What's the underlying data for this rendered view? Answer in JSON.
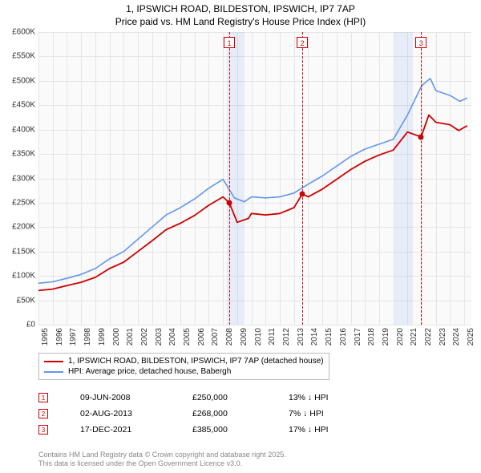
{
  "title_line1": "1, IPSWICH ROAD, BILDESTON, IPSWICH, IP7 7AP",
  "title_line2": "Price paid vs. HM Land Registry's House Price Index (HPI)",
  "chart": {
    "type": "line",
    "background_color": "#fafafa",
    "grid_color": "#e5e5e5",
    "x_years": [
      1995,
      1996,
      1997,
      1998,
      1999,
      2000,
      2001,
      2002,
      2003,
      2004,
      2005,
      2006,
      2007,
      2008,
      2009,
      2010,
      2011,
      2012,
      2013,
      2014,
      2015,
      2016,
      2017,
      2018,
      2019,
      2020,
      2021,
      2022,
      2023,
      2024,
      2025
    ],
    "xlim": [
      1995,
      2025.5
    ],
    "ylim": [
      0,
      600
    ],
    "ytick_step": 50,
    "ytick_prefix": "£",
    "ytick_suffix": "K",
    "shaded_ranges": [
      {
        "start": 2008.25,
        "end": 2009.5
      },
      {
        "start": 2020.1,
        "end": 2021.35
      }
    ],
    "series": [
      {
        "name": "hpi",
        "label": "HPI: Average price, detached house, Babergh",
        "color": "#6495ed",
        "line_width": 1.6,
        "data": [
          [
            1995,
            85
          ],
          [
            1996,
            88
          ],
          [
            1997,
            95
          ],
          [
            1998,
            103
          ],
          [
            1999,
            115
          ],
          [
            2000,
            135
          ],
          [
            2001,
            150
          ],
          [
            2002,
            175
          ],
          [
            2003,
            200
          ],
          [
            2004,
            225
          ],
          [
            2005,
            240
          ],
          [
            2006,
            258
          ],
          [
            2007,
            280
          ],
          [
            2008,
            298
          ],
          [
            2008.8,
            260
          ],
          [
            2009.5,
            252
          ],
          [
            2010,
            262
          ],
          [
            2011,
            260
          ],
          [
            2012,
            262
          ],
          [
            2013,
            270
          ],
          [
            2014,
            288
          ],
          [
            2015,
            305
          ],
          [
            2016,
            325
          ],
          [
            2017,
            345
          ],
          [
            2018,
            360
          ],
          [
            2019,
            370
          ],
          [
            2020,
            380
          ],
          [
            2021,
            430
          ],
          [
            2022,
            490
          ],
          [
            2022.6,
            505
          ],
          [
            2023,
            480
          ],
          [
            2024,
            470
          ],
          [
            2024.7,
            458
          ],
          [
            2025.2,
            465
          ]
        ]
      },
      {
        "name": "property",
        "label": "1, IPSWICH ROAD, BILDESTON, IPSWICH, IP7 7AP (detached house)",
        "color": "#cc0000",
        "line_width": 1.8,
        "data": [
          [
            1995,
            70
          ],
          [
            1996,
            73
          ],
          [
            1997,
            80
          ],
          [
            1998,
            87
          ],
          [
            1999,
            97
          ],
          [
            2000,
            115
          ],
          [
            2001,
            128
          ],
          [
            2002,
            150
          ],
          [
            2003,
            172
          ],
          [
            2004,
            195
          ],
          [
            2005,
            208
          ],
          [
            2006,
            224
          ],
          [
            2007,
            245
          ],
          [
            2008,
            262
          ],
          [
            2008.44,
            250
          ],
          [
            2009,
            210
          ],
          [
            2009.8,
            218
          ],
          [
            2010,
            228
          ],
          [
            2011,
            225
          ],
          [
            2012,
            228
          ],
          [
            2013,
            240
          ],
          [
            2013.59,
            268
          ],
          [
            2014,
            262
          ],
          [
            2015,
            278
          ],
          [
            2016,
            298
          ],
          [
            2017,
            318
          ],
          [
            2018,
            335
          ],
          [
            2019,
            348
          ],
          [
            2020,
            358
          ],
          [
            2021,
            395
          ],
          [
            2021.96,
            385
          ],
          [
            2022.5,
            430
          ],
          [
            2023,
            415
          ],
          [
            2024,
            410
          ],
          [
            2024.6,
            398
          ],
          [
            2025.2,
            408
          ]
        ]
      }
    ],
    "sale_markers": [
      {
        "idx": "1",
        "x": 2008.44,
        "y": 250
      },
      {
        "idx": "2",
        "x": 2013.59,
        "y": 268
      },
      {
        "idx": "3",
        "x": 2021.96,
        "y": 385
      }
    ]
  },
  "legend": {
    "items": [
      {
        "color": "#cc0000",
        "label_ref": "chart.series.1.label"
      },
      {
        "color": "#6495ed",
        "label_ref": "chart.series.0.label"
      }
    ]
  },
  "sales": [
    {
      "idx": "1",
      "date": "09-JUN-2008",
      "price": "£250,000",
      "delta": "13% ↓ HPI"
    },
    {
      "idx": "2",
      "date": "02-AUG-2013",
      "price": "£268,000",
      "delta": "7% ↓ HPI"
    },
    {
      "idx": "3",
      "date": "17-DEC-2021",
      "price": "£385,000",
      "delta": "17% ↓ HPI"
    }
  ],
  "footer_line1": "Contains HM Land Registry data © Crown copyright and database right 2025.",
  "footer_line2": "This data is licensed under the Open Government Licence v3.0."
}
